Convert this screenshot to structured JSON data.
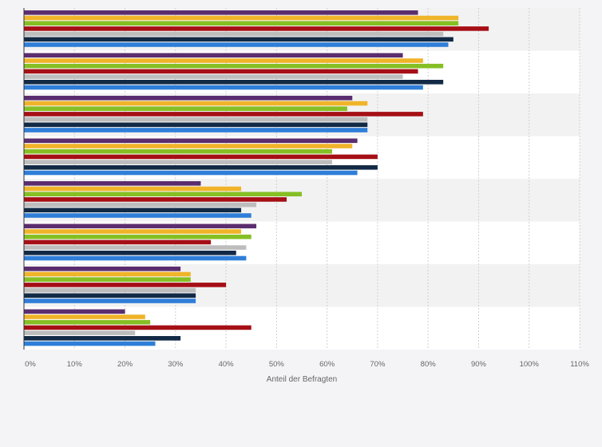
{
  "chart_data": {
    "type": "bar",
    "orientation": "horizontal",
    "title": "",
    "xlabel": "Anteil der Befragten",
    "ylabel": "",
    "xlim": [
      0,
      110
    ],
    "x_ticks": [
      "0%",
      "10%",
      "20%",
      "30%",
      "40%",
      "50%",
      "60%",
      "70%",
      "80%",
      "90%",
      "100%",
      "110%"
    ],
    "grid": true,
    "legend": "none",
    "categories": [
      "",
      "",
      "",
      "",
      "",
      "",
      "",
      ""
    ],
    "series": [
      {
        "color": "#5b2d6e",
        "values": [
          78,
          75,
          65,
          66,
          35,
          46,
          31,
          20
        ]
      },
      {
        "color": "#f0b429",
        "values": [
          86,
          79,
          68,
          65,
          43,
          43,
          33,
          24
        ]
      },
      {
        "color": "#86bf24",
        "values": [
          86,
          83,
          64,
          61,
          55,
          45,
          33,
          25
        ]
      },
      {
        "color": "#a50f15",
        "values": [
          92,
          78,
          79,
          70,
          52,
          37,
          40,
          45
        ]
      },
      {
        "color": "#bdbdbd",
        "values": [
          83,
          75,
          68,
          61,
          46,
          44,
          34,
          22
        ]
      },
      {
        "color": "#122a45",
        "values": [
          85,
          83,
          68,
          70,
          43,
          42,
          34,
          31
        ]
      },
      {
        "color": "#2f7ed8",
        "values": [
          84,
          79,
          68,
          66,
          45,
          44,
          34,
          26
        ]
      }
    ]
  }
}
